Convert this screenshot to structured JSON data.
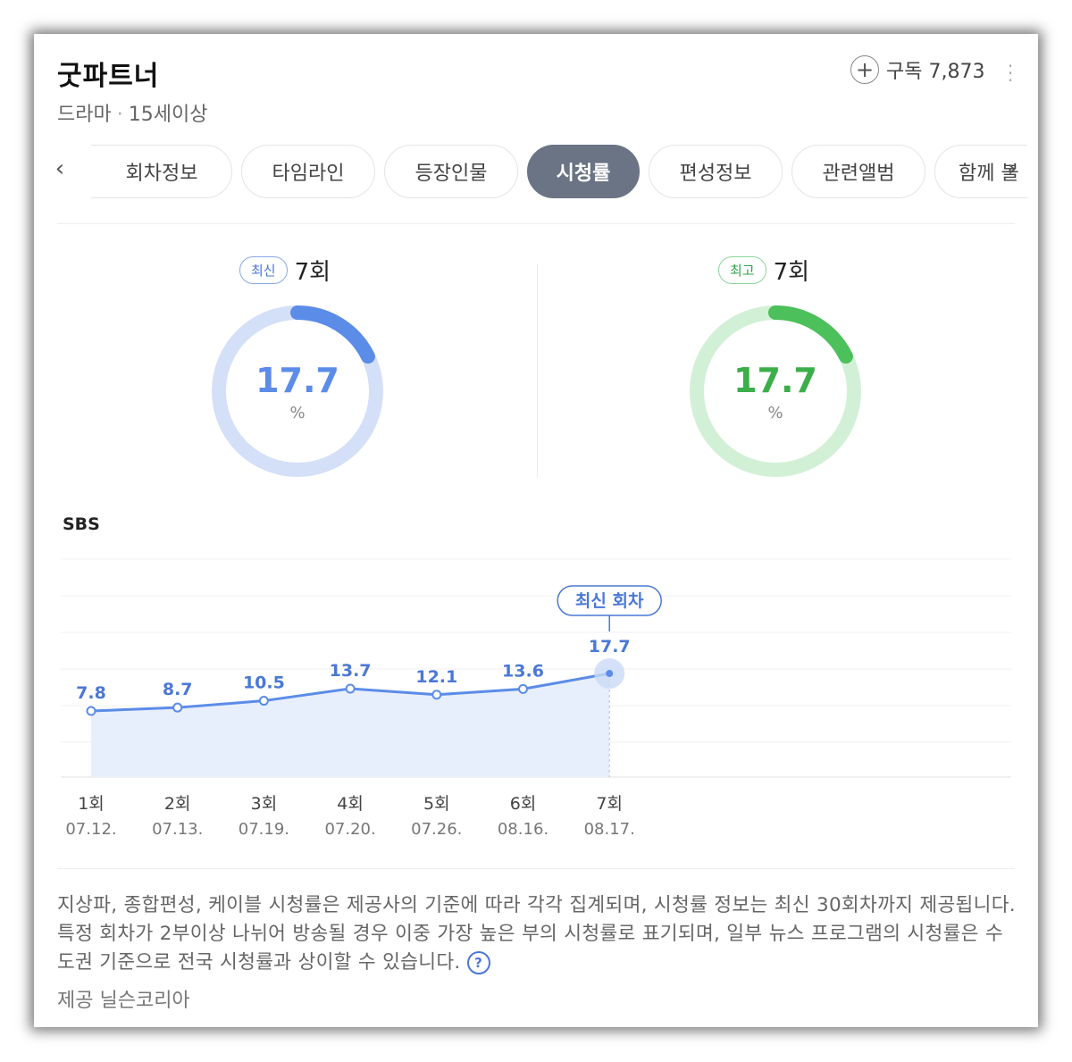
{
  "header": {
    "title": "굿파트너",
    "genre": "드라마",
    "separator": "·",
    "rating": "15세이상",
    "subscribe_label": "구독 7,873",
    "plus_glyph": "+"
  },
  "tabs": {
    "prev_glyph": "‹",
    "next_glyph": "›",
    "items": [
      "회차정보",
      "타임라인",
      "등장인물",
      "시청률",
      "편성정보",
      "관련앨범",
      "함께 볼"
    ],
    "active_index": 3
  },
  "ratings": {
    "latest": {
      "badge": "최신",
      "episode": "7회",
      "value": "17.7",
      "unit": "%",
      "fraction": 0.177,
      "color": "#5b8ce8",
      "track": "#d4e0f8"
    },
    "highest": {
      "badge": "최고",
      "episode": "7회",
      "value": "17.7",
      "unit": "%",
      "fraction": 0.177,
      "color": "#4cc05a",
      "track": "#d2f0d6"
    }
  },
  "network": "SBS",
  "chart_data": {
    "type": "area",
    "series": [
      {
        "values": [
          7.8,
          8.7,
          10.5,
          13.7,
          12.1,
          13.6,
          17.7
        ]
      }
    ],
    "categories": [
      "1회",
      "2회",
      "3회",
      "4회",
      "5회",
      "6회",
      "7회"
    ],
    "dates": [
      "07.12.",
      "07.13.",
      "07.19.",
      "07.20.",
      "07.26.",
      "08.16.",
      "08.17."
    ],
    "annotation": "최신 회차",
    "annotation_index": 6,
    "line_color": "#5b8ce8",
    "fill_color": "#e8effc",
    "label_color": "#4a78d6",
    "grid": true
  },
  "notice": {
    "text": "지상파, 종합편성, 케이블 시청률은 제공사의 기준에 따라 각각 집계되며, 시청률 정보는 최신 30회차까지 제공됩니다. 특정 회차가 2부이상 나뉘어 방송될 경우 이중 가장 높은 부의 시청률로 표기되며, 일부 뉴스 프로그램의 시청률은 수도권 기준으로 전국 시청률과 상이할 수 있습니다.",
    "help_glyph": "?",
    "provider": "제공 닐슨코리아"
  },
  "icons": {
    "subscribe": "plus-circle-icon",
    "more": "more-vertical-icon",
    "prev": "chevron-left-icon",
    "next": "chevron-right-icon",
    "help": "help-circle-icon"
  }
}
